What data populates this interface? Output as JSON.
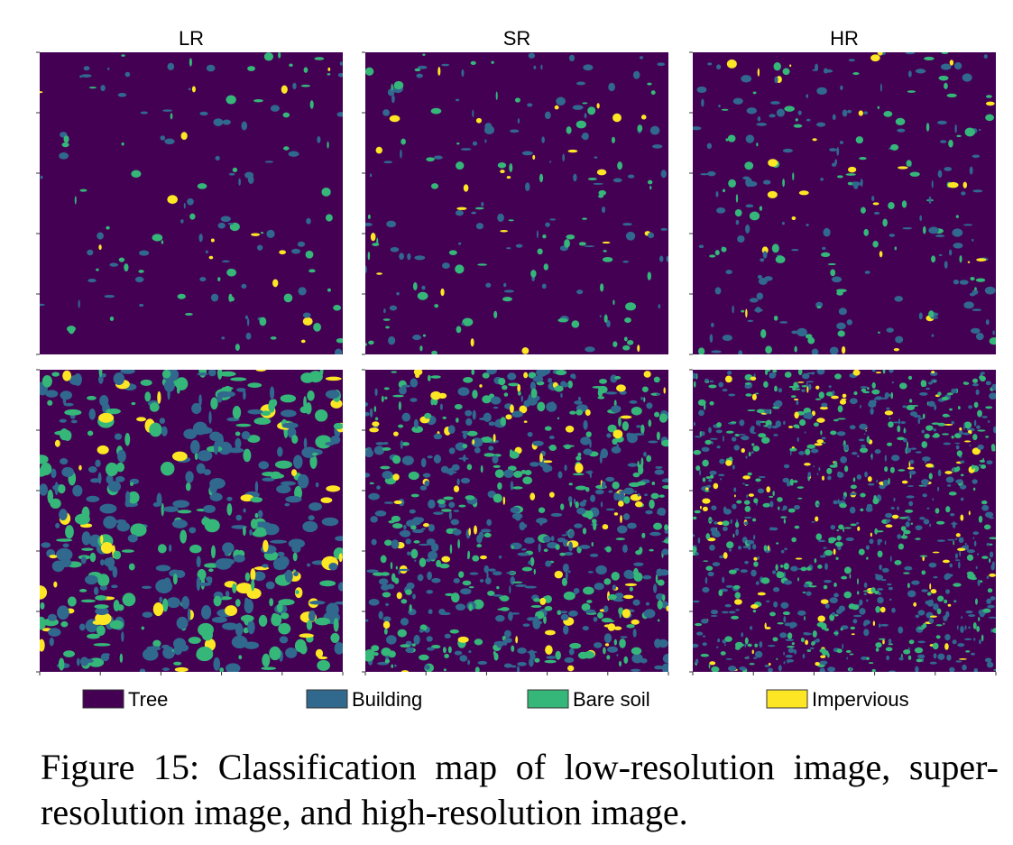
{
  "columns": [
    {
      "title": "LR"
    },
    {
      "title": "SR"
    },
    {
      "title": "HR"
    }
  ],
  "legend": [
    {
      "label": "Tree",
      "color": "#440154"
    },
    {
      "label": "Building",
      "color": "#31688e"
    },
    {
      "label": "Bare soil",
      "color": "#35b779"
    },
    {
      "label": "Impervious",
      "color": "#fde725"
    }
  ],
  "caption": "Figure 15: Classification map of low-resolution image, super-resolution image, and high-resolution image."
}
